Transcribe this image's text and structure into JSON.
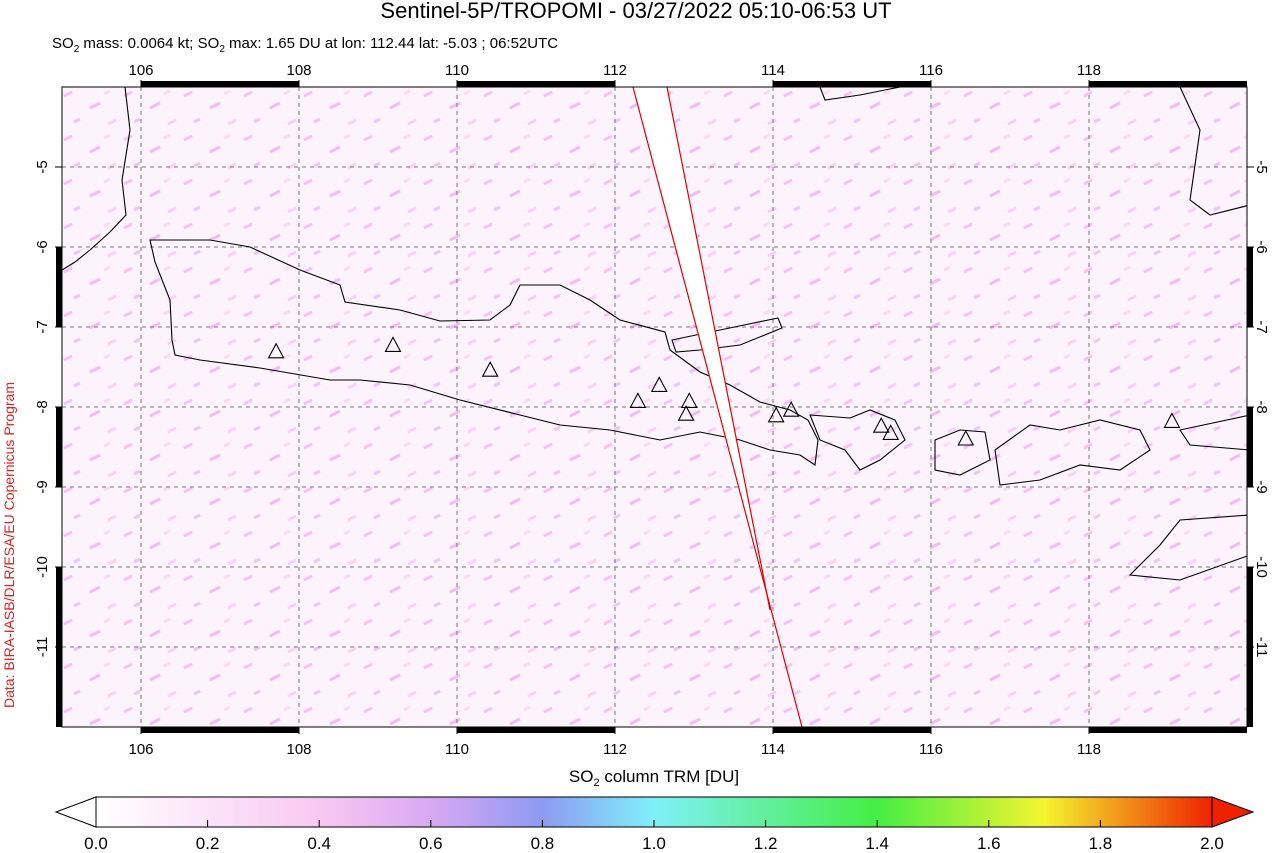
{
  "title": "Sentinel-5P/TROPOMI - 03/27/2022 05:10-06:53 UT",
  "subtitle": [
    "SO",
    "2",
    " mass: 0.0064 kt; SO",
    "2",
    " max: 1.65 DU at lon: 112.44 lat: -5.03 ; 06:52UTC"
  ],
  "credit": "Data: BIRA-IASB/DLR/ESA/EU Copernicus Program",
  "map": {
    "xlim": [
      105,
      120
    ],
    "ylim": [
      -12,
      -4
    ],
    "xticks": [
      106,
      108,
      110,
      112,
      114,
      116,
      118
    ],
    "yticks": [
      -5,
      -6,
      -7,
      -8,
      -9,
      -10,
      -11
    ],
    "grid": true,
    "volcanoes": [
      {
        "lon": 107.71,
        "lat": -7.31
      },
      {
        "lon": 109.19,
        "lat": -7.23
      },
      {
        "lon": 110.42,
        "lat": -7.54
      },
      {
        "lon": 112.29,
        "lat": -7.93
      },
      {
        "lon": 112.56,
        "lat": -7.73
      },
      {
        "lon": 112.94,
        "lat": -7.93
      },
      {
        "lon": 112.9,
        "lat": -8.09
      },
      {
        "lon": 114.04,
        "lat": -8.11
      },
      {
        "lon": 114.23,
        "lat": -8.04
      },
      {
        "lon": 115.37,
        "lat": -8.24
      },
      {
        "lon": 115.49,
        "lat": -8.33
      },
      {
        "lon": 116.44,
        "lat": -8.4
      },
      {
        "lon": 119.05,
        "lat": -8.18
      }
    ]
  },
  "colorbar": {
    "label": [
      "SO",
      "2",
      " column TRM [DU]"
    ],
    "lim": [
      0,
      2
    ],
    "ticks": [
      {
        "value": 0,
        "label": "0.0"
      },
      {
        "value": 0.2,
        "label": "0.2"
      },
      {
        "value": 0.4,
        "label": "0.4"
      },
      {
        "value": 0.6,
        "label": "0.6"
      },
      {
        "value": 0.8,
        "label": "0.8"
      },
      {
        "value": 1,
        "label": "1.0"
      },
      {
        "value": 1.2,
        "label": "1.2"
      },
      {
        "value": 1.4,
        "label": "1.4"
      },
      {
        "value": 1.6,
        "label": "1.6"
      },
      {
        "value": 1.8,
        "label": "1.8"
      },
      {
        "value": 2,
        "label": "2.0"
      }
    ]
  }
}
